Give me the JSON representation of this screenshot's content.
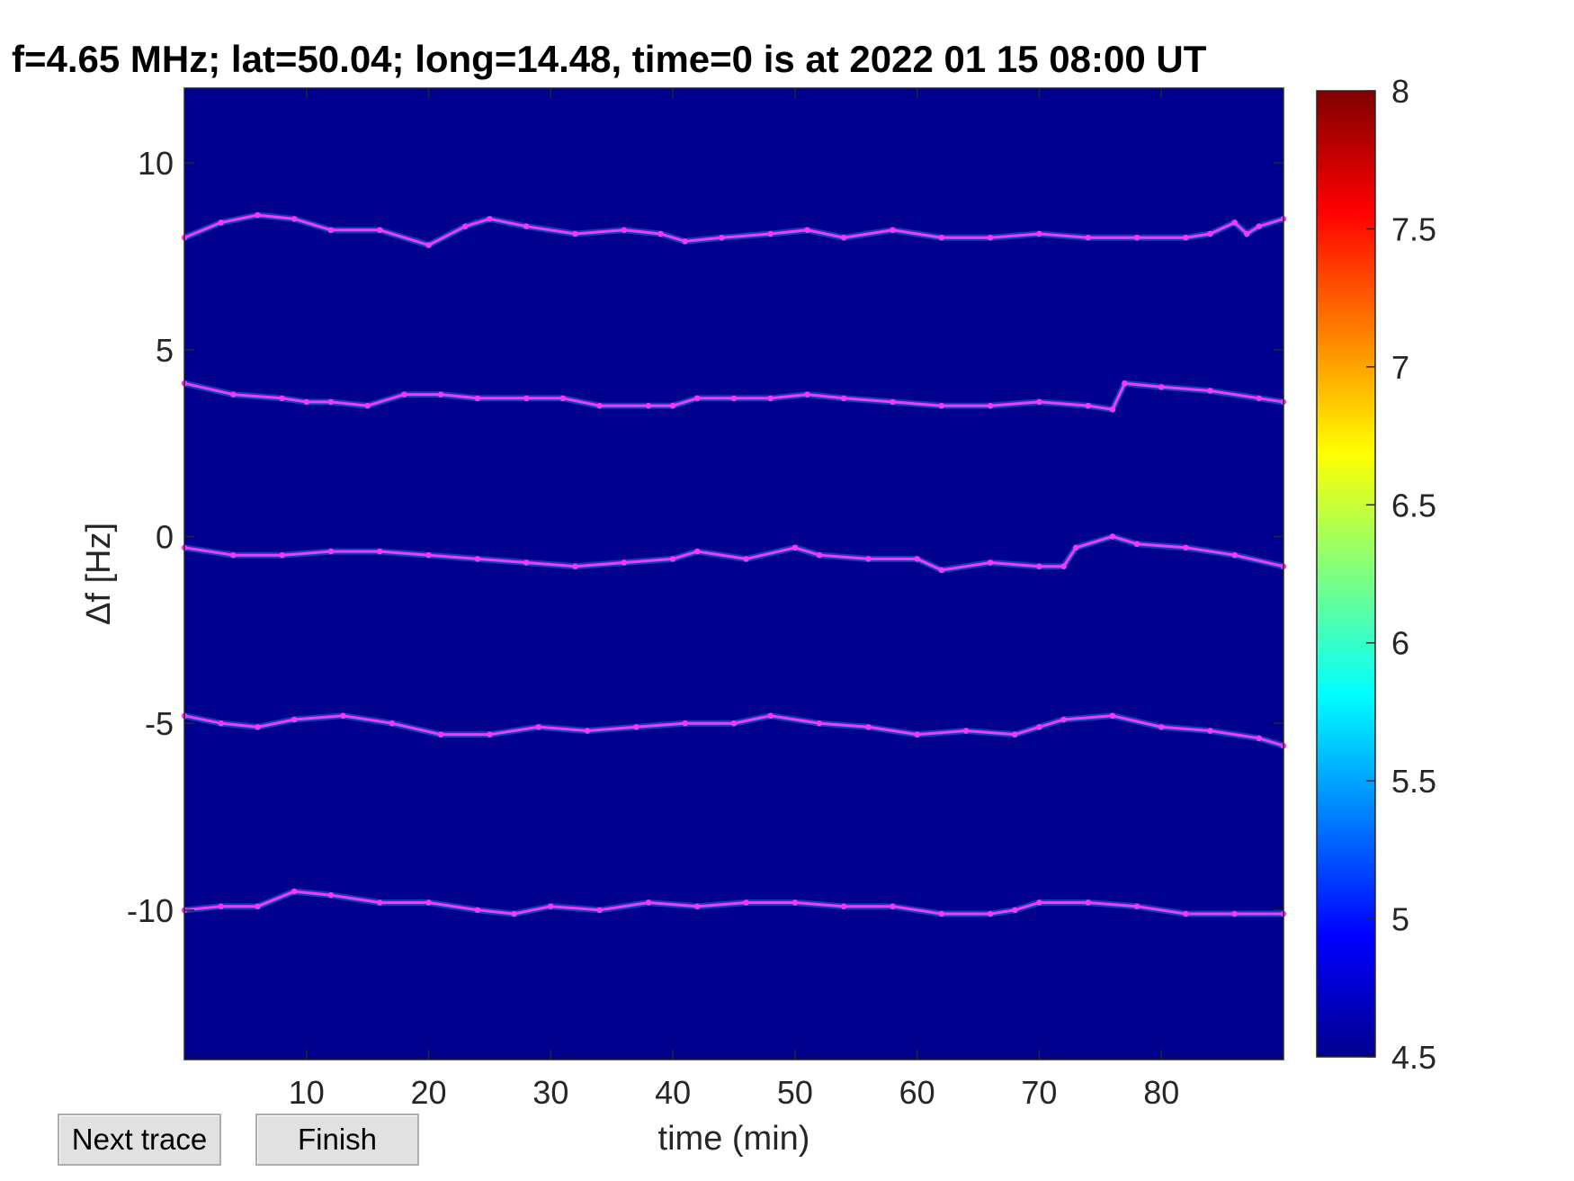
{
  "chart_data": {
    "type": "heatmap",
    "title": "f=4.65 MHz;  lat=50.04; long=14.48, time=0 is at 2022 01 15 08:00 UT",
    "xlabel": "time (min)",
    "ylabel": "Δf [Hz]",
    "xlim": [
      0,
      90
    ],
    "ylim": [
      -14,
      12
    ],
    "xticks": [
      10,
      20,
      30,
      40,
      50,
      60,
      70,
      80
    ],
    "yticks": [
      10,
      5,
      0,
      -5,
      -10
    ],
    "colorbar": {
      "ticks": [
        8,
        7.5,
        7,
        6.5,
        6,
        5.5,
        5,
        4.5
      ],
      "range": [
        4.5,
        8
      ],
      "colormap": "jet"
    },
    "background_color": "#00008f",
    "trace_color": "#ff33ff",
    "series": [
      {
        "x": [
          0,
          3,
          6,
          9,
          12,
          16,
          20,
          23,
          25,
          28,
          32,
          36,
          39,
          41,
          44,
          48,
          51,
          54,
          58,
          62,
          66,
          70,
          74,
          78,
          82,
          84,
          86,
          87,
          88,
          90
        ],
        "y": [
          8.0,
          8.4,
          8.6,
          8.5,
          8.2,
          8.2,
          7.8,
          8.3,
          8.5,
          8.3,
          8.1,
          8.2,
          8.1,
          7.9,
          8.0,
          8.1,
          8.2,
          8.0,
          8.2,
          8.0,
          8.0,
          8.1,
          8.0,
          8.0,
          8.0,
          8.1,
          8.4,
          8.1,
          8.3,
          8.5
        ]
      },
      {
        "x": [
          0,
          4,
          8,
          10,
          12,
          15,
          18,
          21,
          24,
          28,
          31,
          34,
          38,
          40,
          42,
          45,
          48,
          51,
          54,
          58,
          62,
          66,
          70,
          74,
          76,
          77,
          80,
          84,
          88,
          90
        ],
        "y": [
          4.1,
          3.8,
          3.7,
          3.6,
          3.6,
          3.5,
          3.8,
          3.8,
          3.7,
          3.7,
          3.7,
          3.5,
          3.5,
          3.5,
          3.7,
          3.7,
          3.7,
          3.8,
          3.7,
          3.6,
          3.5,
          3.5,
          3.6,
          3.5,
          3.4,
          4.1,
          4.0,
          3.9,
          3.7,
          3.6
        ]
      },
      {
        "x": [
          0,
          4,
          8,
          12,
          16,
          20,
          24,
          28,
          32,
          36,
          40,
          42,
          46,
          50,
          52,
          56,
          60,
          62,
          66,
          70,
          72,
          73,
          76,
          78,
          82,
          86,
          90
        ],
        "y": [
          -0.3,
          -0.5,
          -0.5,
          -0.4,
          -0.4,
          -0.5,
          -0.6,
          -0.7,
          -0.8,
          -0.7,
          -0.6,
          -0.4,
          -0.6,
          -0.3,
          -0.5,
          -0.6,
          -0.6,
          -0.9,
          -0.7,
          -0.8,
          -0.8,
          -0.3,
          0.0,
          -0.2,
          -0.3,
          -0.5,
          -0.8
        ]
      },
      {
        "x": [
          0,
          3,
          6,
          9,
          13,
          17,
          21,
          25,
          29,
          33,
          37,
          41,
          45,
          48,
          52,
          56,
          60,
          64,
          68,
          70,
          72,
          76,
          80,
          84,
          88,
          90
        ],
        "y": [
          -4.8,
          -5.0,
          -5.1,
          -4.9,
          -4.8,
          -5.0,
          -5.3,
          -5.3,
          -5.1,
          -5.2,
          -5.1,
          -5.0,
          -5.0,
          -4.8,
          -5.0,
          -5.1,
          -5.3,
          -5.2,
          -5.3,
          -5.1,
          -4.9,
          -4.8,
          -5.1,
          -5.2,
          -5.4,
          -5.6
        ]
      },
      {
        "x": [
          0,
          3,
          6,
          9,
          12,
          16,
          20,
          24,
          27,
          30,
          34,
          38,
          42,
          46,
          50,
          54,
          58,
          62,
          66,
          68,
          70,
          74,
          78,
          82,
          86,
          90
        ],
        "y": [
          -10.0,
          -9.9,
          -9.9,
          -9.5,
          -9.6,
          -9.8,
          -9.8,
          -10.0,
          -10.1,
          -9.9,
          -10.0,
          -9.8,
          -9.9,
          -9.8,
          -9.8,
          -9.9,
          -9.9,
          -10.1,
          -10.1,
          -10.0,
          -9.8,
          -9.8,
          -9.9,
          -10.1,
          -10.1,
          -10.1
        ]
      }
    ]
  },
  "controls": {
    "next_label": "Next trace",
    "finish_label": "Finish"
  }
}
